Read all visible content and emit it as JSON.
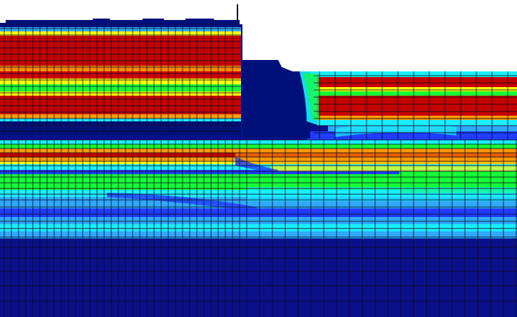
{
  "figure": {
    "kind": "finite-element contour plot",
    "colormap": "jet",
    "colors": {
      "background": "#ffffff",
      "deep_blue": "#0a0f8a",
      "navy": "#00107a",
      "blue": "#1f3cff",
      "sky": "#2fa9ff",
      "cyan": "#18f0ff",
      "green": "#12ff36",
      "yellow": "#ffff00",
      "orange": "#ff9a00",
      "red": "#e00000",
      "dark_red": "#a00000",
      "mesh_line": "#0b1020"
    }
  }
}
